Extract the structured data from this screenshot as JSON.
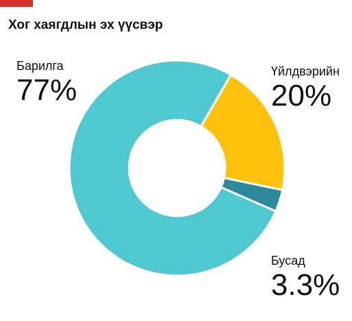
{
  "header": {
    "accent_color": "#d32f2f"
  },
  "chart_data": {
    "type": "pie",
    "title": "Хог хаягдлын эх үүсвэр",
    "donut": true,
    "slices": [
      {
        "name": "Барилга",
        "value": 77,
        "label": "77%",
        "color": "#4fc9cf"
      },
      {
        "name": "Үйлдвэрийн",
        "value": 20,
        "label": "20%",
        "color": "#fec10e"
      },
      {
        "name": "Бусад",
        "value": 3.3,
        "label": "3.3%",
        "color": "#2e889b"
      }
    ],
    "legend": "direct-labels"
  }
}
